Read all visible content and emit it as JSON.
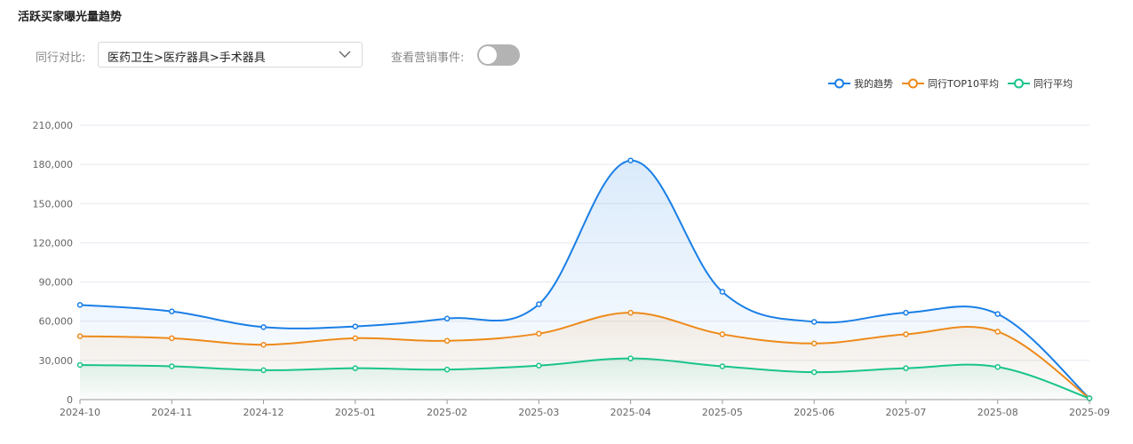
{
  "panel": {
    "title": "活跃买家曝光量趋势"
  },
  "filters": {
    "compare_label": "同行对比:",
    "compare_value": "医药卫生>医疗器具>手术器具",
    "events_label": "查看营销事件:",
    "events_enabled": false
  },
  "colors": {
    "my_trend": "#1a7fe6",
    "top10": "#ee8a1a",
    "average": "#19c48b",
    "grid": "#e6e9f0"
  },
  "chart_data": {
    "type": "area",
    "x": [
      "2024-10",
      "2024-11",
      "2024-12",
      "2025-01",
      "2025-02",
      "2025-03",
      "2025-04",
      "2025-05",
      "2025-06",
      "2025-07",
      "2025-08",
      "2025-09"
    ],
    "ylim": [
      0,
      210000
    ],
    "yticks": [
      0,
      30000,
      60000,
      90000,
      120000,
      150000,
      180000,
      210000
    ],
    "ytick_labels": [
      "0",
      "30,000",
      "60,000",
      "90,000",
      "120,000",
      "150,000",
      "180,000",
      "210,000"
    ],
    "grid": true,
    "legend_position": "top-right",
    "series": [
      {
        "name": "我的趋势",
        "values": [
          72500,
          67500,
          55500,
          56000,
          62000,
          73000,
          183000,
          82500,
          59500,
          66500,
          65500,
          1000
        ]
      },
      {
        "name": "同行TOP10平均",
        "values": [
          48500,
          47000,
          42000,
          47000,
          45000,
          50500,
          66500,
          50000,
          43000,
          50000,
          52000,
          1000
        ]
      },
      {
        "name": "同行平均",
        "values": [
          26500,
          25500,
          22500,
          24000,
          23000,
          26000,
          31500,
          25500,
          21000,
          24000,
          25000,
          1000
        ]
      }
    ]
  }
}
